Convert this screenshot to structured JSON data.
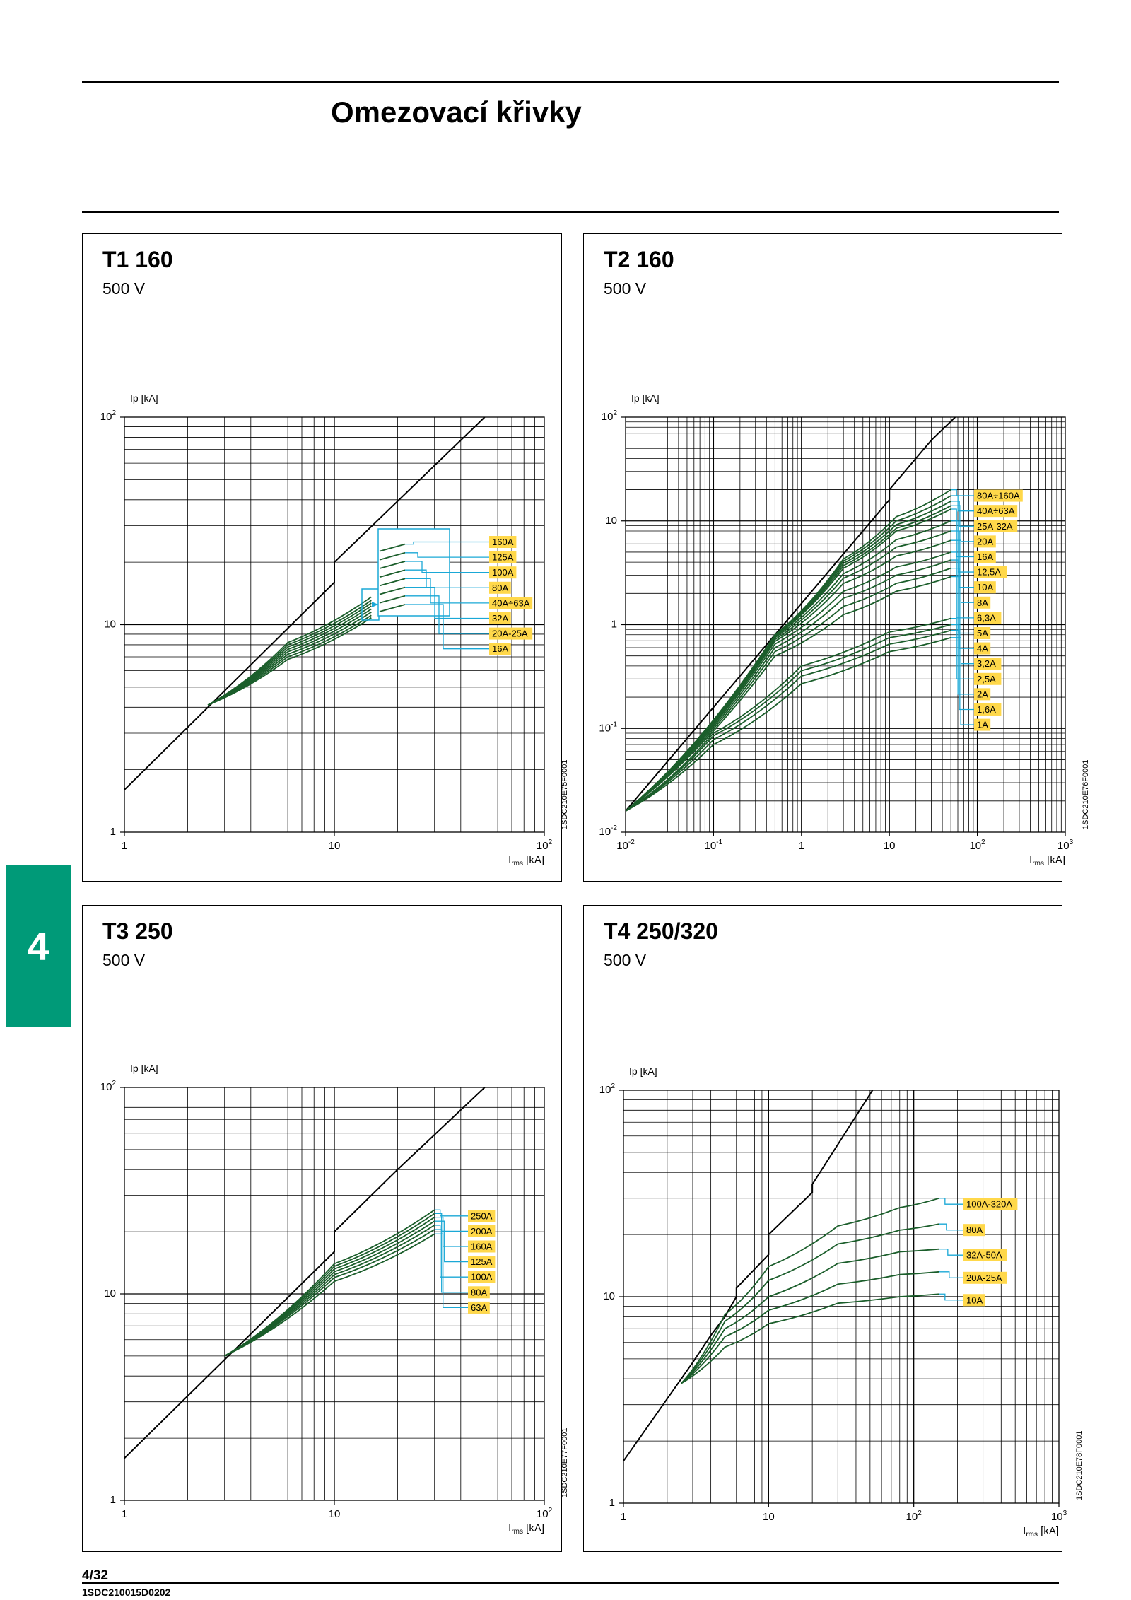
{
  "page": {
    "title": "Omezovací křivky",
    "chapter": "4",
    "page_number": "4/32",
    "doc_code": "1SDC210015D0202"
  },
  "colors": {
    "curve": "#1b5e2b",
    "leader": "#1aa8d6",
    "label_bg": "#ffd84a",
    "tab": "#009a78"
  },
  "chart_data": [
    {
      "type": "line",
      "title": "T1 160",
      "subtitle": "500 V",
      "ylabel": "Ip [kA]",
      "xlabel": "I",
      "xlabel_sub": "rms",
      "xlabel_unit": " [kA]",
      "xscale": "log",
      "yscale": "log",
      "xlim": [
        1,
        100
      ],
      "ylim": [
        1,
        100
      ],
      "x_ticks": [
        {
          "v": 1,
          "b": "1",
          "e": ""
        },
        {
          "v": 10,
          "b": "10",
          "e": ""
        },
        {
          "v": 100,
          "b": "10",
          "e": "2"
        }
      ],
      "y_ticks": [
        {
          "v": 1,
          "b": "1",
          "e": ""
        },
        {
          "v": 10,
          "b": "10",
          "e": ""
        },
        {
          "v": 100,
          "b": "10",
          "e": "2"
        }
      ],
      "grid": true,
      "code": "1SDC210E75F0001",
      "envelope": [
        [
          1,
          1.6
        ],
        [
          10,
          16
        ],
        [
          10,
          20
        ],
        [
          52,
          100
        ]
      ],
      "series": [
        {
          "name": "160A",
          "values": [
            [
              2.5,
              4.1
            ],
            [
              6,
              8.2
            ],
            [
              15,
              13.6
            ]
          ]
        },
        {
          "name": "125A",
          "values": [
            [
              2.5,
              4.1
            ],
            [
              6,
              8.0
            ],
            [
              15,
              13.1
            ]
          ]
        },
        {
          "name": "100A",
          "values": [
            [
              2.5,
              4.1
            ],
            [
              6,
              7.8
            ],
            [
              15,
              12.7
            ]
          ]
        },
        {
          "name": "80A",
          "values": [
            [
              2.5,
              4.1
            ],
            [
              6,
              7.6
            ],
            [
              15,
              12.3
            ]
          ]
        },
        {
          "name": "40A÷63A",
          "values": [
            [
              2.5,
              4.1
            ],
            [
              6,
              7.4
            ],
            [
              15,
              11.9
            ]
          ]
        },
        {
          "name": "32A",
          "values": [
            [
              2.5,
              4.1
            ],
            [
              6,
              7.2
            ],
            [
              15,
              11.5
            ]
          ]
        },
        {
          "name": "20A-25A",
          "values": [
            [
              2.5,
              4.1
            ],
            [
              6,
              7.0
            ],
            [
              15,
              11.1
            ]
          ]
        },
        {
          "name": "16A",
          "values": [
            [
              2.5,
              4.1
            ],
            [
              6,
              6.8
            ],
            [
              15,
              10.8
            ]
          ]
        }
      ]
    },
    {
      "type": "line",
      "title": "T2 160",
      "subtitle": "500 V",
      "ylabel": "Ip [kA]",
      "xlabel": "I",
      "xlabel_sub": "rms",
      "xlabel_unit": " [kA]",
      "xscale": "log",
      "yscale": "log",
      "xlim": [
        0.01,
        1000
      ],
      "ylim": [
        0.01,
        100
      ],
      "x_ticks": [
        {
          "v": 0.01,
          "b": "10",
          "e": "-2"
        },
        {
          "v": 0.1,
          "b": "10",
          "e": "-1"
        },
        {
          "v": 1,
          "b": "1",
          "e": ""
        },
        {
          "v": 10,
          "b": "10",
          "e": ""
        },
        {
          "v": 100,
          "b": "10",
          "e": "2"
        },
        {
          "v": 1000,
          "b": "10",
          "e": "3"
        }
      ],
      "y_ticks": [
        {
          "v": 0.01,
          "b": "10",
          "e": "-2"
        },
        {
          "v": 0.1,
          "b": "10",
          "e": "-1"
        },
        {
          "v": 1,
          "b": "1",
          "e": ""
        },
        {
          "v": 10,
          "b": "10",
          "e": ""
        },
        {
          "v": 100,
          "b": "10",
          "e": "2"
        }
      ],
      "grid": true,
      "code": "1SDC210E76F0001",
      "envelope": [
        [
          0.01,
          0.016
        ],
        [
          1,
          1.6
        ],
        [
          10,
          16
        ],
        [
          10,
          20
        ],
        [
          20,
          40
        ],
        [
          30,
          60
        ],
        [
          56,
          100
        ]
      ],
      "series": [
        {
          "name": "80A÷160A",
          "values": [
            [
              0.01,
              0.016
            ],
            [
              0.5,
              0.8
            ],
            [
              3,
              4.3
            ],
            [
              12,
              11
            ],
            [
              50,
              20
            ]
          ]
        },
        {
          "name": "40A÷63A",
          "values": [
            [
              0.01,
              0.016
            ],
            [
              0.5,
              0.8
            ],
            [
              3,
              4.1
            ],
            [
              12,
              10
            ],
            [
              50,
              17.5
            ]
          ]
        },
        {
          "name": "25A-32A",
          "values": [
            [
              0.01,
              0.016
            ],
            [
              0.5,
              0.79
            ],
            [
              3,
              3.9
            ],
            [
              12,
              9.2
            ],
            [
              50,
              15.5
            ]
          ]
        },
        {
          "name": "20A",
          "values": [
            [
              0.01,
              0.016
            ],
            [
              0.5,
              0.78
            ],
            [
              3,
              3.7
            ],
            [
              12,
              8.5
            ],
            [
              50,
              14
            ]
          ]
        },
        {
          "name": "16A",
          "values": [
            [
              0.01,
              0.016
            ],
            [
              0.5,
              0.77
            ],
            [
              3,
              3.5
            ],
            [
              12,
              8
            ],
            [
              50,
              13
            ]
          ]
        },
        {
          "name": "12,5A",
          "values": [
            [
              0.01,
              0.016
            ],
            [
              0.5,
              0.75
            ],
            [
              3,
              3.1
            ],
            [
              12,
              6.6
            ],
            [
              50,
              10
            ]
          ]
        },
        {
          "name": "10A",
          "values": [
            [
              0.01,
              0.016
            ],
            [
              0.5,
              0.72
            ],
            [
              3,
              2.8
            ],
            [
              12,
              5.6
            ],
            [
              50,
              8
            ]
          ]
        },
        {
          "name": "8A",
          "values": [
            [
              0.01,
              0.016
            ],
            [
              0.5,
              0.69
            ],
            [
              3,
              2.5
            ],
            [
              12,
              4.6
            ],
            [
              50,
              6.5
            ]
          ]
        },
        {
          "name": "6,3A",
          "values": [
            [
              0.01,
              0.016
            ],
            [
              0.5,
              0.65
            ],
            [
              3,
              2.1
            ],
            [
              12,
              3.6
            ],
            [
              50,
              5
            ]
          ]
        },
        {
          "name": "5A",
          "values": [
            [
              0.01,
              0.016
            ],
            [
              0.5,
              0.6
            ],
            [
              3,
              1.8
            ],
            [
              12,
              3
            ],
            [
              50,
              4.2
            ]
          ]
        },
        {
          "name": "4A",
          "values": [
            [
              0.01,
              0.016
            ],
            [
              0.5,
              0.55
            ],
            [
              3,
              1.5
            ],
            [
              12,
              2.5
            ],
            [
              50,
              3.5
            ]
          ]
        },
        {
          "name": "3,2A",
          "values": [
            [
              0.01,
              0.016
            ],
            [
              0.5,
              0.5
            ],
            [
              3,
              1.25
            ],
            [
              12,
              2.1
            ],
            [
              50,
              2.9
            ]
          ]
        },
        {
          "name": "2,5A",
          "values": [
            [
              0.01,
              0.016
            ],
            [
              0.1,
              0.09
            ],
            [
              1,
              0.4
            ],
            [
              10,
              0.85
            ],
            [
              50,
              1.15
            ]
          ]
        },
        {
          "name": "2A",
          "values": [
            [
              0.01,
              0.016
            ],
            [
              0.1,
              0.085
            ],
            [
              1,
              0.36
            ],
            [
              10,
              0.75
            ],
            [
              50,
              1.0
            ]
          ]
        },
        {
          "name": "1,6A",
          "values": [
            [
              0.01,
              0.016
            ],
            [
              0.1,
              0.078
            ],
            [
              1,
              0.32
            ],
            [
              10,
              0.65
            ],
            [
              50,
              0.88
            ]
          ]
        },
        {
          "name": "1A",
          "values": [
            [
              0.01,
              0.016
            ],
            [
              0.1,
              0.07
            ],
            [
              1,
              0.27
            ],
            [
              10,
              0.55
            ],
            [
              50,
              0.75
            ]
          ]
        }
      ]
    },
    {
      "type": "line",
      "title": "T3 250",
      "subtitle": "500 V",
      "ylabel": "Ip [kA]",
      "xlabel": "I",
      "xlabel_sub": "rms",
      "xlabel_unit": " [kA]",
      "xscale": "log",
      "yscale": "log",
      "xlim": [
        1,
        100
      ],
      "ylim": [
        1,
        100
      ],
      "x_ticks": [
        {
          "v": 1,
          "b": "1",
          "e": ""
        },
        {
          "v": 10,
          "b": "10",
          "e": ""
        },
        {
          "v": 100,
          "b": "10",
          "e": "2"
        }
      ],
      "y_ticks": [
        {
          "v": 1,
          "b": "1",
          "e": ""
        },
        {
          "v": 10,
          "b": "10",
          "e": ""
        },
        {
          "v": 100,
          "b": "10",
          "e": "2"
        }
      ],
      "grid": true,
      "code": "1SDC210E77F0001",
      "envelope": [
        [
          1,
          1.6
        ],
        [
          10,
          16
        ],
        [
          10,
          20
        ],
        [
          20,
          40
        ],
        [
          52,
          100
        ]
      ],
      "series": [
        {
          "name": "250A",
          "values": [
            [
              3,
              5
            ],
            [
              10,
              14
            ],
            [
              30,
              25.5
            ]
          ]
        },
        {
          "name": "200A",
          "values": [
            [
              3,
              5
            ],
            [
              10,
              13.6
            ],
            [
              30,
              24.5
            ]
          ]
        },
        {
          "name": "160A",
          "values": [
            [
              3,
              5
            ],
            [
              10,
              13.2
            ],
            [
              30,
              23.5
            ]
          ]
        },
        {
          "name": "125A",
          "values": [
            [
              3,
              5
            ],
            [
              10,
              12.8
            ],
            [
              30,
              22.5
            ]
          ]
        },
        {
          "name": "100A",
          "values": [
            [
              3,
              5
            ],
            [
              10,
              12.4
            ],
            [
              30,
              21.5
            ]
          ]
        },
        {
          "name": "80A",
          "values": [
            [
              3,
              5
            ],
            [
              10,
              12
            ],
            [
              30,
              20.5
            ]
          ]
        },
        {
          "name": "63A",
          "values": [
            [
              3,
              5
            ],
            [
              10,
              11.5
            ],
            [
              30,
              19.5
            ]
          ]
        }
      ]
    },
    {
      "type": "line",
      "title": "T4 250/320",
      "subtitle": "500 V",
      "ylabel": "Ip [kA]",
      "xlabel": "I",
      "xlabel_sub": "rms",
      "xlabel_unit": " [kA]",
      "xscale": "log",
      "yscale": "log",
      "xlim": [
        1,
        1000
      ],
      "ylim": [
        1,
        100
      ],
      "x_ticks": [
        {
          "v": 1,
          "b": "1",
          "e": ""
        },
        {
          "v": 10,
          "b": "10",
          "e": ""
        },
        {
          "v": 100,
          "b": "10",
          "e": "2"
        },
        {
          "v": 1000,
          "b": "10",
          "e": "3"
        }
      ],
      "y_ticks": [
        {
          "v": 1,
          "b": "1",
          "e": ""
        },
        {
          "v": 10,
          "b": "10",
          "e": ""
        },
        {
          "v": 100,
          "b": "10",
          "e": "2"
        }
      ],
      "grid": true,
      "code": "1SDC210E78F0001",
      "envelope": [
        [
          1,
          1.6
        ],
        [
          3,
          4.8
        ],
        [
          4,
          6.5
        ],
        [
          5,
          8
        ],
        [
          6,
          10
        ],
        [
          6,
          11
        ],
        [
          10,
          16
        ],
        [
          10,
          20
        ],
        [
          20,
          32
        ],
        [
          20,
          35
        ],
        [
          52,
          100
        ]
      ],
      "series": [
        {
          "name": "100A-320A",
          "values": [
            [
              2.5,
              3.8
            ],
            [
              5,
              8.2
            ],
            [
              10,
              14
            ],
            [
              30,
              22
            ],
            [
              80,
              27
            ],
            [
              150,
              30
            ]
          ]
        },
        {
          "name": "80A",
          "values": [
            [
              2.5,
              3.8
            ],
            [
              5,
              7.6
            ],
            [
              10,
              12
            ],
            [
              30,
              18
            ],
            [
              80,
              21
            ],
            [
              150,
              22.5
            ]
          ]
        },
        {
          "name": "32A-50A",
          "values": [
            [
              2.5,
              3.8
            ],
            [
              5,
              7
            ],
            [
              10,
              10
            ],
            [
              30,
              14.5
            ],
            [
              80,
              16.5
            ],
            [
              150,
              17
            ]
          ]
        },
        {
          "name": "20A-25A",
          "values": [
            [
              2.5,
              3.8
            ],
            [
              5,
              6.4
            ],
            [
              10,
              8.6
            ],
            [
              30,
              11.5
            ],
            [
              80,
              12.8
            ],
            [
              150,
              13.2
            ]
          ]
        },
        {
          "name": "10A",
          "values": [
            [
              2.5,
              3.8
            ],
            [
              5,
              5.7
            ],
            [
              10,
              7.4
            ],
            [
              30,
              9.3
            ],
            [
              80,
              10
            ],
            [
              150,
              10.3
            ]
          ]
        }
      ]
    }
  ]
}
